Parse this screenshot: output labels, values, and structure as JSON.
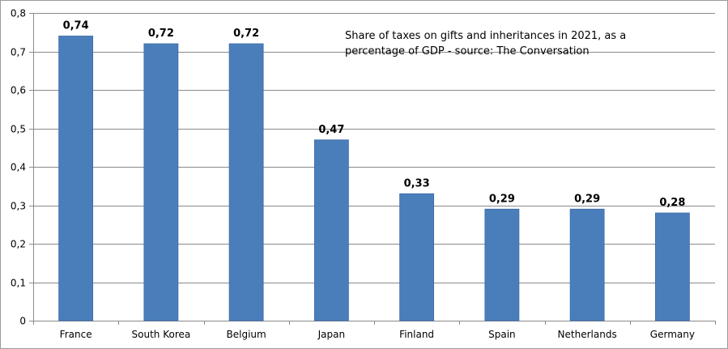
{
  "chart_data": {
    "type": "bar",
    "title_lines": [
      "Share of taxes on gifts and inheritances in 2021, as a",
      "percentage of GDP - source: The Conversation"
    ],
    "categories": [
      "France",
      "South Korea",
      "Belgium",
      "Japan",
      "Finland",
      "Spain",
      "Netherlands",
      "Germany"
    ],
    "values": [
      0.74,
      0.72,
      0.72,
      0.47,
      0.33,
      0.29,
      0.29,
      0.28
    ],
    "value_labels": [
      "0,74",
      "0,72",
      "0,72",
      "0,47",
      "0,33",
      "0,29",
      "0,29",
      "0,28"
    ],
    "y_ticks": [
      0,
      0.1,
      0.2,
      0.3,
      0.4,
      0.5,
      0.6,
      0.7,
      0.8
    ],
    "y_tick_labels": [
      "0",
      "0,1",
      "0,2",
      "0,3",
      "0,4",
      "0,5",
      "0,6",
      "0,7",
      "0,8"
    ],
    "ylim": [
      0,
      0.8
    ],
    "xlabel": "",
    "ylabel": "",
    "grid": true,
    "colors": {
      "bar": "#4a7ebb",
      "bar_edge": "#3a6aa6",
      "grid": "#8a8a8a",
      "axis": "#8a8a8a"
    }
  }
}
